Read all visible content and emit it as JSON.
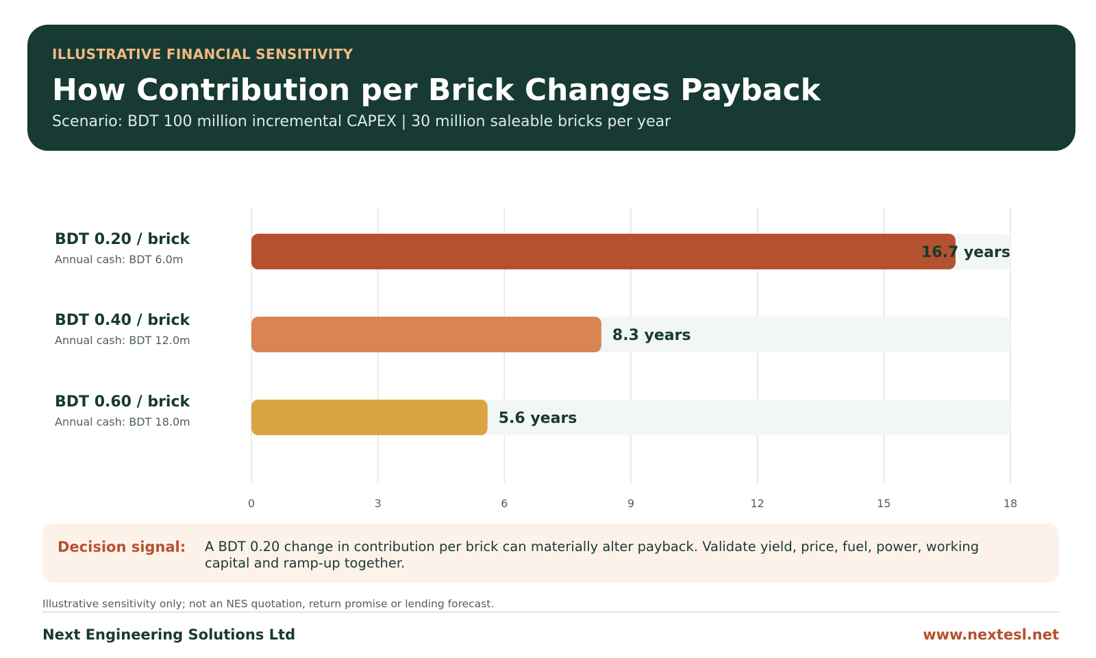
{
  "header": {
    "eyebrow": "ILLUSTRATIVE FINANCIAL SENSITIVITY",
    "title": "How Contribution per Brick Changes Payback",
    "subtitle": "Scenario: BDT 100 million incremental CAPEX | 30 million saleable bricks per year"
  },
  "chart_data": {
    "type": "bar",
    "orientation": "horizontal",
    "categories": [
      "BDT 0.20 / brick",
      "BDT 0.40 / brick",
      "BDT 0.60 / brick"
    ],
    "category_sublabels": [
      "Annual cash: BDT 6.0m",
      "Annual cash: BDT 12.0m",
      "Annual cash: BDT 18.0m"
    ],
    "values": [
      16.7,
      8.3,
      5.6
    ],
    "value_labels": [
      "16.7 years",
      "8.3 years",
      "5.6 years"
    ],
    "colors": [
      "#b4522f",
      "#d98552",
      "#dba443"
    ],
    "track_color": "#f2f6f4",
    "xlim": [
      0,
      18
    ],
    "xticks": [
      0,
      3,
      6,
      9,
      12,
      15,
      18
    ],
    "grid": true,
    "title": "",
    "xlabel": "",
    "ylabel": ""
  },
  "signal": {
    "label": "Decision signal:",
    "text": "A BDT 0.20 change in contribution per brick can materially alter payback. Validate yield, price, fuel, power, working capital and ramp-up together."
  },
  "footer": {
    "disclaimer": "Illustrative sensitivity only; not an NES quotation, return promise or lending forecast.",
    "company": "Next Engineering Solutions Ltd",
    "website": "www.nextesl.net"
  }
}
